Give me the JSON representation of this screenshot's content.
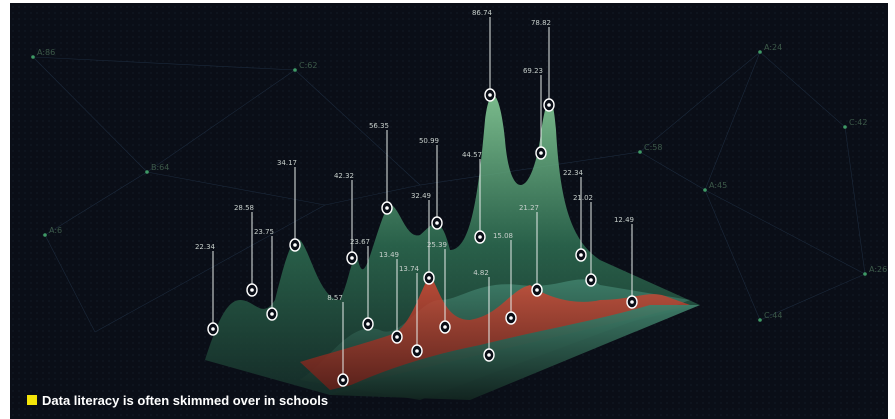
{
  "caption": "Data literacy is often skimmed over in schools",
  "nodes": [
    "A:86",
    "C:62",
    "B:64",
    "A:6",
    "A:24",
    "C:42",
    "C:58",
    "A:45",
    "A:26",
    "C:44"
  ],
  "pins": [
    {
      "label": "22.34",
      "value": 22.34
    },
    {
      "label": "28.58",
      "value": 28.58
    },
    {
      "label": "23.75",
      "value": 23.75
    },
    {
      "label": "34.17",
      "value": 34.17
    },
    {
      "label": "42.32",
      "value": 42.32
    },
    {
      "label": "8.57",
      "value": 8.57
    },
    {
      "label": "23.67",
      "value": 23.67
    },
    {
      "label": "56.35",
      "value": 56.35
    },
    {
      "label": "13.49",
      "value": 13.49
    },
    {
      "label": "13.74",
      "value": 13.74
    },
    {
      "label": "50.99",
      "value": 50.99
    },
    {
      "label": "32.49",
      "value": 32.49
    },
    {
      "label": "25.39",
      "value": 25.39
    },
    {
      "label": "44.57",
      "value": 44.57
    },
    {
      "label": "86.74",
      "value": 86.74
    },
    {
      "label": "4.82",
      "value": 4.82
    },
    {
      "label": "15.08",
      "value": 15.08
    },
    {
      "label": "69.23",
      "value": 69.23
    },
    {
      "label": "78.82",
      "value": 78.82
    },
    {
      "label": "21.27",
      "value": 21.27
    },
    {
      "label": "22.34",
      "value": 22.34
    },
    {
      "label": "21.02",
      "value": 21.02
    },
    {
      "label": "12.49",
      "value": 12.49
    }
  ]
}
